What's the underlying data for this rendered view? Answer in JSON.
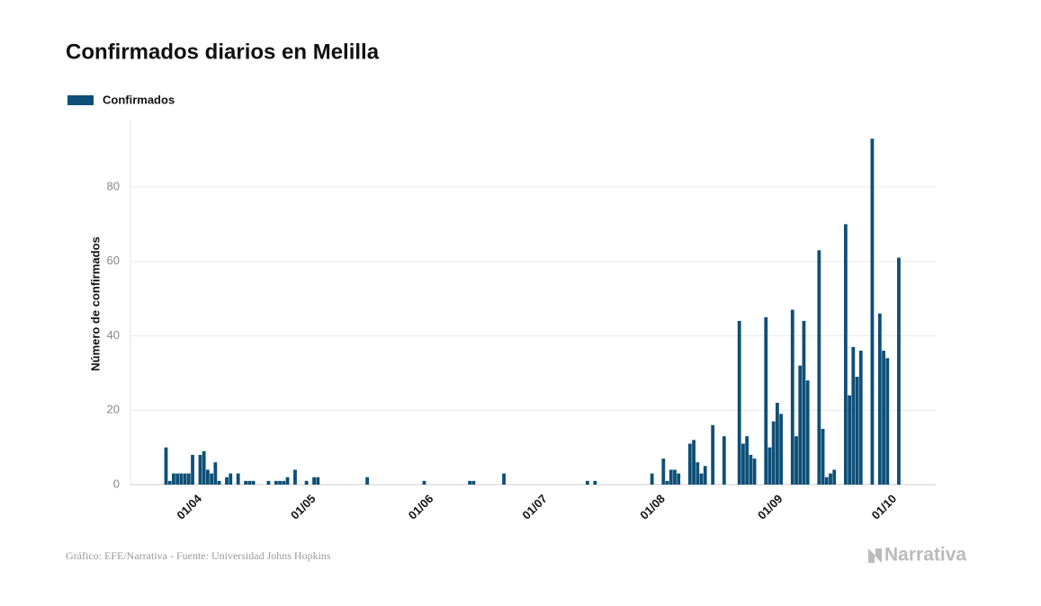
{
  "chart_data": {
    "type": "bar",
    "title": "Confirmados diarios en Melilla",
    "ylabel": "Número de confirmados",
    "source": "Gráfico: EFE/Narrativa - Fuente: Universidad Johns Hopkins",
    "brand": "Narrativa",
    "categories": [
      null,
      null,
      null,
      null,
      null,
      null,
      null,
      null,
      null,
      "01/04",
      null,
      null,
      null,
      null,
      null,
      null,
      null,
      null,
      null,
      null,
      null,
      null,
      null,
      null,
      null,
      null,
      null,
      null,
      null,
      null,
      null,
      null,
      null,
      null,
      null,
      null,
      null,
      null,
      null,
      "01/05",
      null,
      null,
      null,
      null,
      null,
      null,
      null,
      null,
      null,
      null,
      null,
      null,
      null,
      null,
      null,
      null,
      null,
      null,
      null,
      null,
      null,
      null,
      null,
      null,
      null,
      null,
      null,
      null,
      null,
      null,
      "01/06",
      null,
      null,
      null,
      null,
      null,
      null,
      null,
      null,
      null,
      null,
      null,
      null,
      null,
      null,
      null,
      null,
      null,
      null,
      null,
      null,
      null,
      null,
      null,
      null,
      null,
      null,
      null,
      null,
      null,
      "01/07",
      null,
      null,
      null,
      null,
      null,
      null,
      null,
      null,
      null,
      null,
      null,
      null,
      null,
      null,
      null,
      null,
      null,
      null,
      null,
      null,
      null,
      null,
      null,
      null,
      null,
      null,
      null,
      null,
      null,
      null,
      "01/08",
      null,
      null,
      null,
      null,
      null,
      null,
      null,
      null,
      null,
      null,
      null,
      null,
      null,
      null,
      null,
      null,
      null,
      null,
      null,
      null,
      null,
      null,
      null,
      null,
      null,
      null,
      null,
      null,
      null,
      null,
      "01/09",
      null,
      null,
      null,
      null,
      null,
      null,
      null,
      null,
      null,
      null,
      null,
      null,
      null,
      null,
      null,
      null,
      null,
      null,
      null,
      null,
      null,
      null,
      null,
      null,
      null,
      null,
      null,
      null,
      null,
      "01/10",
      null
    ],
    "series": [
      {
        "name": "Confirmados",
        "color": "#0e4f77",
        "values": [
          10,
          1,
          3,
          3,
          3,
          3,
          3,
          8,
          0,
          8,
          9,
          4,
          3,
          6,
          1,
          0,
          2,
          3,
          0,
          3,
          0,
          1,
          1,
          1,
          0,
          0,
          0,
          1,
          0,
          1,
          1,
          1,
          2,
          0,
          4,
          0,
          0,
          1,
          0,
          2,
          2,
          0,
          0,
          0,
          0,
          0,
          0,
          0,
          0,
          0,
          0,
          0,
          0,
          2,
          0,
          0,
          0,
          0,
          0,
          0,
          0,
          0,
          0,
          0,
          0,
          0,
          0,
          0,
          1,
          0,
          0,
          0,
          0,
          0,
          0,
          0,
          0,
          0,
          0,
          0,
          1,
          1,
          0,
          0,
          0,
          0,
          0,
          0,
          0,
          3,
          0,
          0,
          0,
          0,
          0,
          0,
          0,
          0,
          0,
          0,
          0,
          0,
          0,
          0,
          0,
          0,
          0,
          0,
          0,
          0,
          0,
          1,
          0,
          1,
          0,
          0,
          0,
          0,
          0,
          0,
          0,
          0,
          0,
          0,
          0,
          0,
          0,
          0,
          3,
          0,
          0,
          7,
          1,
          4,
          4,
          3,
          0,
          0,
          11,
          12,
          6,
          3,
          5,
          0,
          16,
          0,
          0,
          13,
          0,
          0,
          0,
          44,
          11,
          13,
          8,
          7,
          0,
          0,
          45,
          10,
          17,
          22,
          19,
          0,
          0,
          47,
          13,
          32,
          44,
          28,
          0,
          0,
          63,
          15,
          2,
          3,
          4,
          0,
          0,
          70,
          24,
          37,
          29,
          36,
          0,
          0,
          93,
          0,
          46,
          36,
          34,
          0,
          0,
          61
        ]
      }
    ],
    "ylim": [
      0,
      98
    ],
    "yticks": [
      0,
      20,
      40,
      60,
      80
    ],
    "grid": true
  }
}
